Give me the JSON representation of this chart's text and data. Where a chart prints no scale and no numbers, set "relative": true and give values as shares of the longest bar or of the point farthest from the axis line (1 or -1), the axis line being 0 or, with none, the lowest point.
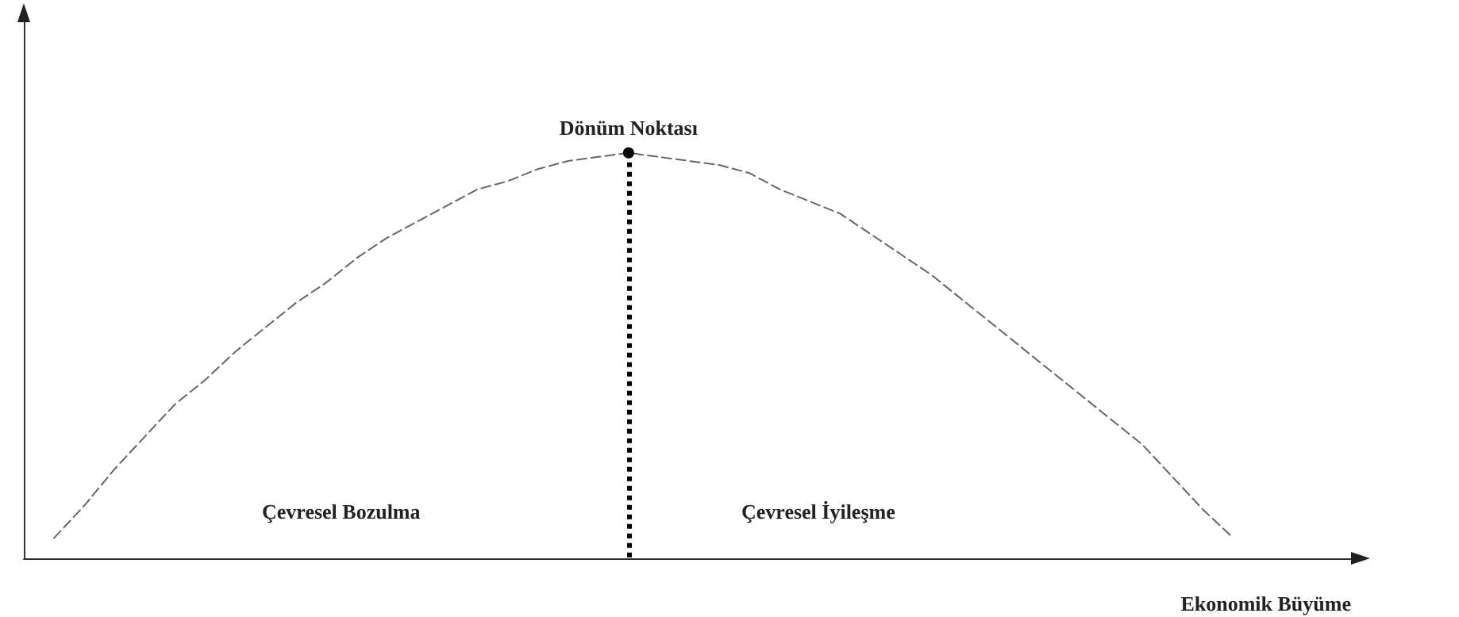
{
  "chart_data": {
    "type": "line",
    "relative": true,
    "xlabel": "Ekonomik Büyüme",
    "categories": [
      null,
      null,
      null,
      null,
      null,
      null,
      null,
      null,
      null,
      null,
      null,
      null,
      null,
      null,
      null,
      null,
      null,
      null,
      null,
      null,
      null,
      null,
      null,
      null,
      null,
      null,
      null,
      null,
      null,
      null,
      null,
      null,
      null,
      null,
      null,
      null,
      null,
      null,
      null,
      null,
      null,
      null,
      null,
      null,
      null
    ],
    "series": [
      {
        "color": "#666666",
        "values": [
          null,
          0.05,
          0.13,
          0.22,
          0.3,
          0.38,
          0.44,
          0.51,
          0.57,
          0.63,
          0.68,
          0.74,
          0.79,
          0.83,
          0.87,
          0.91,
          0.93,
          0.96,
          0.98,
          0.99,
          1,
          0.99,
          0.98,
          0.97,
          0.95,
          0.91,
          0.88,
          0.85,
          0.8,
          0.75,
          0.7,
          0.64,
          0.58,
          0.52,
          0.46,
          0.4,
          0.34,
          0.28,
          0.2,
          0.12,
          0.05,
          null,
          null,
          null,
          null
        ]
      }
    ],
    "annotations": [
      {
        "text": "Dönüm Noktası",
        "y": 1
      },
      "Çevresel Bozulma",
      "Çevresel İyileşme"
    ],
    "marker": "none",
    "line_style": "dashed",
    "grid": false
  }
}
